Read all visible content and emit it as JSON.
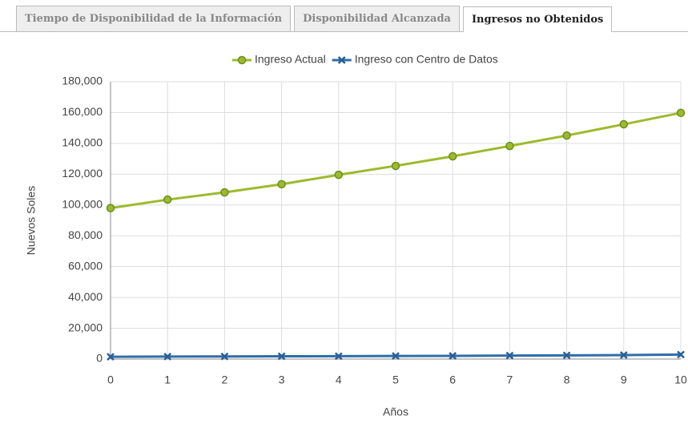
{
  "tabs": [
    "Tiempo de Disponibilidad de la Información",
    "Disponibilidad Alcanzada",
    "Ingresos no Obtenidos"
  ],
  "active_tab": 2,
  "chart_data": {
    "type": "line",
    "x_label": "Años",
    "y_label": "Nuevos Soles",
    "x": [
      0,
      1,
      2,
      3,
      4,
      5,
      6,
      7,
      8,
      9,
      10
    ],
    "series": [
      {
        "name": "Ingreso Actual",
        "color": "#9cba2e",
        "marker_color": "#6e8c1c",
        "marker": "circle",
        "values": [
          98000,
          103500,
          108200,
          113500,
          119600,
          125400,
          131600,
          138300,
          145100,
          152400,
          159800
        ]
      },
      {
        "name": "Ingreso con Centro de Datos",
        "color": "#2f6ea8",
        "marker_color": "#2a5f95",
        "marker": "x",
        "values": [
          1500,
          1600,
          1700,
          1800,
          1900,
          2000,
          2100,
          2300,
          2400,
          2600,
          2900
        ]
      }
    ],
    "xlim": [
      0,
      10
    ],
    "xticks": [
      0,
      1,
      2,
      3,
      4,
      5,
      6,
      7,
      8,
      9,
      10
    ],
    "ylim": [
      0,
      180000
    ],
    "yticks": [
      0,
      {
        "value": 20000,
        "label": "20,000"
      },
      {
        "value": 40000,
        "label": "40,000"
      },
      {
        "value": 60000,
        "label": "60,000"
      },
      {
        "value": 80000,
        "label": "80,000"
      },
      {
        "value": 100000,
        "label": "100,000"
      },
      {
        "value": 120000,
        "label": "120,000"
      },
      {
        "value": 140000,
        "label": "140,000"
      },
      {
        "value": 160000,
        "label": "160,000"
      },
      {
        "value": 180000,
        "label": "180,000"
      }
    ],
    "grid": true,
    "legend": "top"
  }
}
